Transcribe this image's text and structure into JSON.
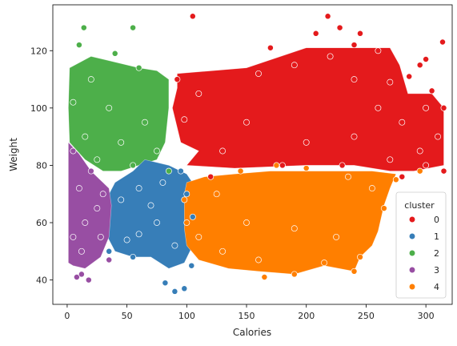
{
  "chart_data": {
    "type": "scatter",
    "xlabel": "Calories",
    "ylabel": "Weight",
    "xlim": [
      -12,
      322
    ],
    "ylim": [
      31.5,
      136
    ],
    "x_ticks": [
      0,
      50,
      100,
      150,
      200,
      250,
      300
    ],
    "y_ticks": [
      40,
      60,
      80,
      100,
      120
    ],
    "grid": false,
    "legend": {
      "title": "cluster",
      "placement": "lower-right",
      "entries": [
        "0",
        "1",
        "2",
        "3",
        "4"
      ]
    },
    "colors": {
      "0": "#e41a1c",
      "1": "#377eb8",
      "2": "#4daf4a",
      "3": "#984ea3",
      "4": "#ff7f00"
    },
    "series": [
      {
        "name": "0",
        "description_points": [
          [
            105,
            132
          ],
          [
            218,
            132
          ],
          [
            228,
            128
          ],
          [
            208,
            126
          ],
          [
            245,
            126
          ],
          [
            170,
            121
          ],
          [
            240,
            122
          ],
          [
            260,
            120
          ],
          [
            300,
            117
          ],
          [
            314,
            123
          ],
          [
            295,
            115
          ],
          [
            286,
            111
          ],
          [
            270,
            109
          ],
          [
            305,
            106
          ],
          [
            300,
            100
          ],
          [
            315,
            100
          ],
          [
            280,
            95
          ],
          [
            310,
            90
          ],
          [
            295,
            85
          ],
          [
            300,
            80
          ],
          [
            315,
            78
          ],
          [
            280,
            76
          ],
          [
            92,
            110
          ],
          [
            110,
            105
          ],
          [
            160,
            112
          ],
          [
            190,
            115
          ],
          [
            220,
            118
          ],
          [
            240,
            110
          ],
          [
            260,
            100
          ],
          [
            150,
            95
          ],
          [
            130,
            85
          ],
          [
            200,
            88
          ],
          [
            240,
            90
          ],
          [
            180,
            80
          ],
          [
            120,
            76
          ],
          [
            230,
            80
          ],
          [
            270,
            82
          ],
          [
            98,
            96
          ]
        ]
      },
      {
        "name": "1",
        "description_points": [
          [
            82,
            39
          ],
          [
            90,
            36
          ],
          [
            98,
            37
          ],
          [
            104,
            45
          ],
          [
            35,
            50
          ],
          [
            50,
            54
          ],
          [
            60,
            56
          ],
          [
            70,
            66
          ],
          [
            80,
            74
          ],
          [
            95,
            78
          ],
          [
            100,
            70
          ],
          [
            105,
            62
          ],
          [
            45,
            68
          ],
          [
            60,
            72
          ],
          [
            75,
            60
          ],
          [
            90,
            52
          ],
          [
            55,
            48
          ]
        ]
      },
      {
        "name": "2",
        "description_points": [
          [
            14,
            128
          ],
          [
            55,
            128
          ],
          [
            10,
            122
          ],
          [
            40,
            119
          ],
          [
            20,
            110
          ],
          [
            60,
            114
          ],
          [
            5,
            102
          ],
          [
            35,
            100
          ],
          [
            65,
            95
          ],
          [
            15,
            90
          ],
          [
            45,
            88
          ],
          [
            75,
            85
          ],
          [
            25,
            82
          ],
          [
            55,
            80
          ],
          [
            85,
            78
          ]
        ]
      },
      {
        "name": "3",
        "description_points": [
          [
            8,
            41
          ],
          [
            12,
            42
          ],
          [
            18,
            40
          ],
          [
            35,
            47
          ],
          [
            5,
            55
          ],
          [
            15,
            60
          ],
          [
            25,
            65
          ],
          [
            10,
            72
          ],
          [
            20,
            78
          ],
          [
            30,
            70
          ],
          [
            5,
            85
          ],
          [
            12,
            50
          ],
          [
            28,
            55
          ]
        ]
      },
      {
        "name": "4",
        "description_points": [
          [
            98,
            68
          ],
          [
            100,
            60
          ],
          [
            110,
            55
          ],
          [
            130,
            50
          ],
          [
            160,
            47
          ],
          [
            165,
            41
          ],
          [
            190,
            42
          ],
          [
            215,
            46
          ],
          [
            240,
            43
          ],
          [
            245,
            48
          ],
          [
            265,
            65
          ],
          [
            275,
            75
          ],
          [
            295,
            78
          ],
          [
            255,
            72
          ],
          [
            235,
            76
          ],
          [
            200,
            79
          ],
          [
            175,
            80
          ],
          [
            145,
            78
          ],
          [
            125,
            70
          ],
          [
            150,
            60
          ],
          [
            190,
            58
          ],
          [
            225,
            55
          ]
        ]
      }
    ]
  }
}
